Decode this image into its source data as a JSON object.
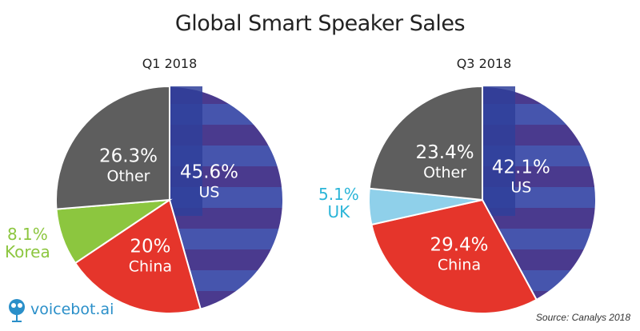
{
  "title": "Global Smart Speaker Sales",
  "source": "Source: Canalys 2018",
  "logo": "voicebot.ai",
  "chart_data": [
    {
      "type": "pie",
      "title": "Q1 2018",
      "start": "12 o'clock, clockwise",
      "slices": [
        {
          "label": "US",
          "value": 45.6,
          "display": "45.6%",
          "color": "#3d4fa6"
        },
        {
          "label": "China",
          "value": 20,
          "display": "20%",
          "color": "#e5352b"
        },
        {
          "label": "Korea",
          "value": 8.1,
          "display": "8.1%",
          "color": "#8cc63f"
        },
        {
          "label": "Other",
          "value": 26.3,
          "display": "26.3%",
          "color": "#5e5e5e"
        }
      ]
    },
    {
      "type": "pie",
      "title": "Q3 2018",
      "start": "12 o'clock, clockwise",
      "slices": [
        {
          "label": "US",
          "value": 42.1,
          "display": "42.1%",
          "color": "#3d4fa6"
        },
        {
          "label": "China",
          "value": 29.4,
          "display": "29.4%",
          "color": "#e5352b"
        },
        {
          "label": "UK",
          "value": 5.1,
          "display": "5.1%",
          "color": "#8fd0ea"
        },
        {
          "label": "Other",
          "value": 23.4,
          "display": "23.4%",
          "color": "#5e5e5e"
        }
      ]
    }
  ]
}
